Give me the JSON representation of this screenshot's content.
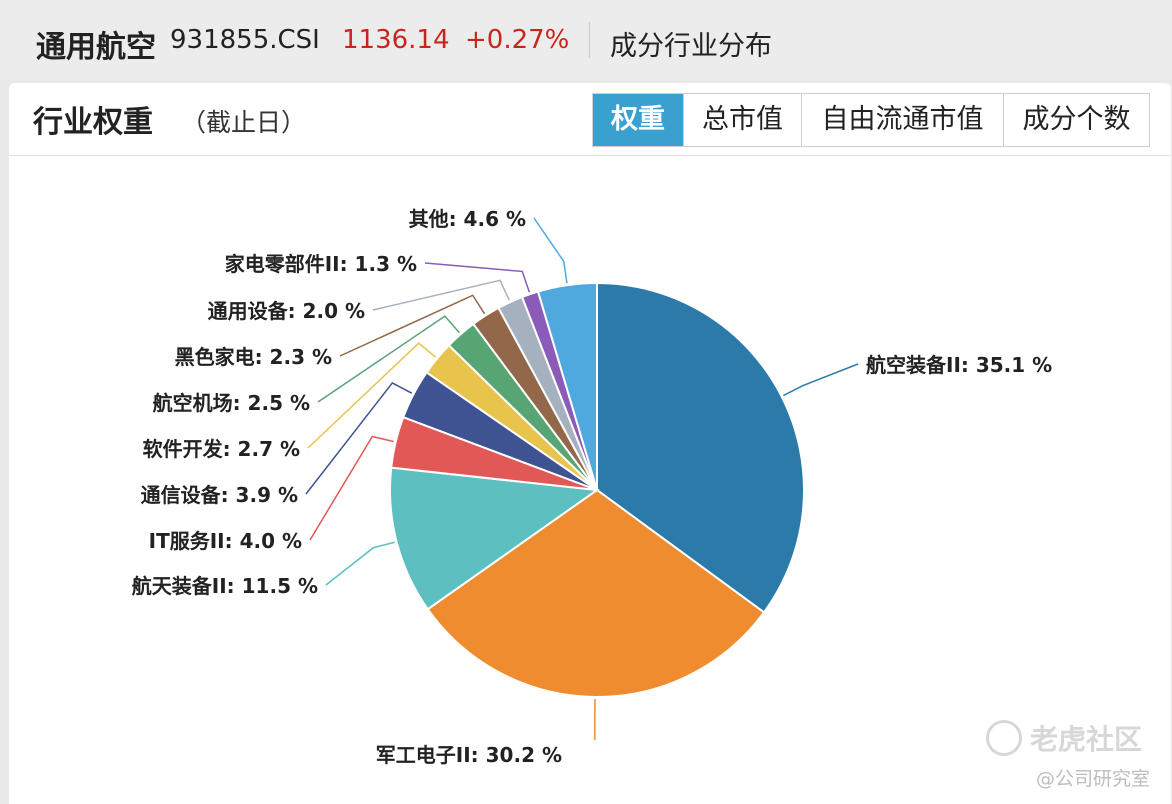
{
  "header": {
    "name": "通用航空",
    "code": "931855.CSI",
    "price": "1136.14",
    "change": "+0.27%",
    "section": "成分行业分布"
  },
  "panel": {
    "title": "行业权重",
    "note": "（截止日）",
    "tabs": [
      {
        "label": "权重",
        "active": true
      },
      {
        "label": "总市值",
        "active": false
      },
      {
        "label": "自由流通市值",
        "active": false
      },
      {
        "label": "成分个数",
        "active": false
      }
    ]
  },
  "chart_data": {
    "type": "pie",
    "unit": "%",
    "slices": [
      {
        "label": "航空装备II",
        "value": 35.1,
        "color": "#2b7aaa"
      },
      {
        "label": "军工电子II",
        "value": 30.2,
        "color": "#ef8c2f"
      },
      {
        "label": "航天装备II",
        "value": 11.5,
        "color": "#5cbfc0"
      },
      {
        "label": "IT服务II",
        "value": 4.0,
        "color": "#e25856"
      },
      {
        "label": "通信设备",
        "value": 3.9,
        "color": "#3f5392"
      },
      {
        "label": "软件开发",
        "value": 2.7,
        "color": "#e8c44d"
      },
      {
        "label": "航空机场",
        "value": 2.5,
        "color": "#58a574"
      },
      {
        "label": "黑色家电",
        "value": 2.3,
        "color": "#936749"
      },
      {
        "label": "通用设备",
        "value": 2.0,
        "color": "#a6b1bf"
      },
      {
        "label": "家电零部件II",
        "value": 1.3,
        "color": "#8a5bb8"
      },
      {
        "label": "其他",
        "value": 4.6,
        "color": "#4fa9df"
      }
    ]
  },
  "watermark": {
    "brand": "老虎社区",
    "author": "@公司研究室"
  }
}
